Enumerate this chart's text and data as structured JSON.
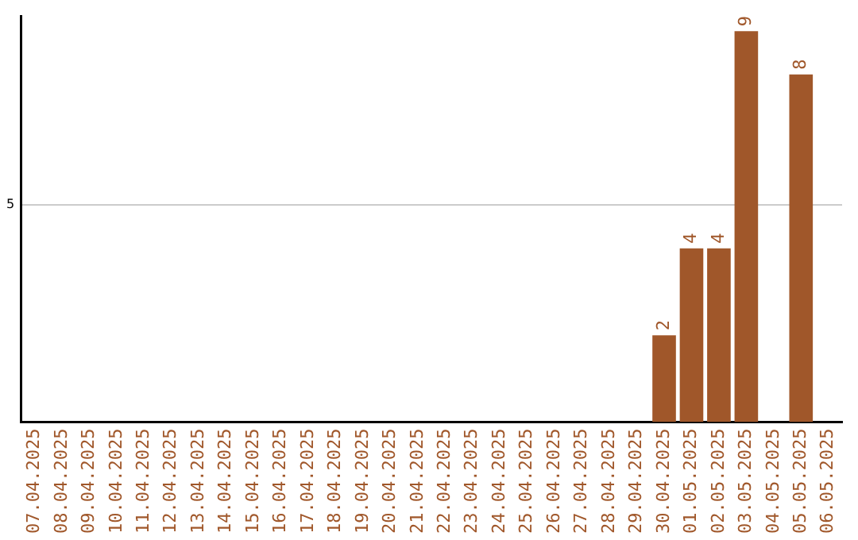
{
  "chart_data": {
    "type": "bar",
    "categories": [
      "07.04.2025",
      "08.04.2025",
      "09.04.2025",
      "10.04.2025",
      "11.04.2025",
      "12.04.2025",
      "13.04.2025",
      "14.04.2025",
      "15.04.2025",
      "16.04.2025",
      "17.04.2025",
      "18.04.2025",
      "19.04.2025",
      "20.04.2025",
      "21.04.2025",
      "22.04.2025",
      "23.04.2025",
      "24.04.2025",
      "25.04.2025",
      "26.04.2025",
      "27.04.2025",
      "28.04.2025",
      "29.04.2025",
      "30.04.2025",
      "01.05.2025",
      "02.05.2025",
      "03.05.2025",
      "04.05.2025",
      "05.05.2025",
      "06.05.2025"
    ],
    "values": [
      null,
      null,
      null,
      null,
      null,
      null,
      null,
      null,
      null,
      null,
      null,
      null,
      null,
      null,
      null,
      null,
      null,
      null,
      null,
      null,
      null,
      null,
      null,
      2,
      4,
      4,
      9,
      null,
      8,
      null
    ],
    "color": "#a0572a",
    "ylim": [
      0,
      9.35
    ],
    "yticks": [
      5
    ],
    "grid": "y",
    "data_labels": true
  }
}
